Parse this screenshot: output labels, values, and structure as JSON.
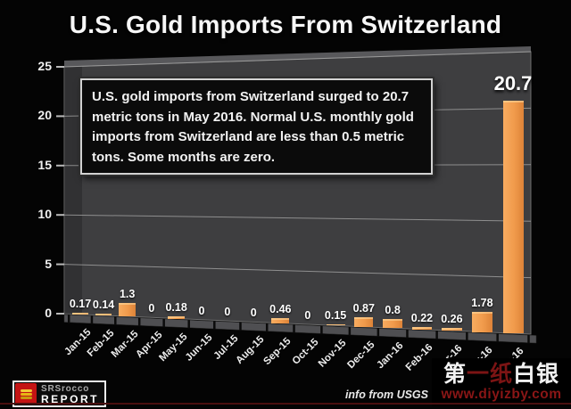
{
  "title": "U.S. Gold Imports From Switzerland",
  "annotation": {
    "text": "U.S. gold imports from Switzerland surged to 20.7 metric tons in May 2016.  Normal U.S. monthly gold imports from Switzerland are less than 0.5 metric tons.  Some months are zero."
  },
  "chart_data": {
    "type": "bar",
    "title": "U.S. Gold Imports From Switzerland",
    "categories": [
      "Jan-15",
      "Feb-15",
      "Mar-15",
      "Apr-15",
      "May-15",
      "Jun-15",
      "Jul-15",
      "Aug-15",
      "Sep-15",
      "Oct-15",
      "Nov-15",
      "Dec-15",
      "Jan-16",
      "Feb-16",
      "Mar-16",
      "Apr-16",
      "May-16"
    ],
    "values": [
      0.17,
      0.14,
      1.3,
      0,
      0.18,
      0,
      0,
      0,
      0.46,
      0,
      0.15,
      0.87,
      0.8,
      0.22,
      0.26,
      1.78,
      20.7
    ],
    "value_labels": [
      "0.17",
      "0.14",
      "1.3",
      "0",
      "0.18",
      "0",
      "0",
      "0",
      "0.46",
      "0",
      "0.15",
      "0.87",
      "0.8",
      "0.22",
      "0.26",
      "1.78",
      "20.7"
    ],
    "highlight_index": 16,
    "xlabel": "",
    "ylabel": "",
    "ylim": [
      0,
      25
    ],
    "yticks": [
      0,
      5,
      10,
      15,
      20,
      25
    ],
    "grid": true,
    "legend": false,
    "bar_color": "#F09A4B",
    "wall_color": "#3E3E40",
    "grid_color": "#a9a9a9"
  },
  "footer": {
    "logo": {
      "line1": "SRSrocco",
      "line2": "REPORT"
    },
    "source_note": "info from USGS",
    "watermark": {
      "line1": "第一纸白银",
      "line1_colors": [
        "#f2f2f2",
        "#7c1414",
        "#7c1414",
        "#f2f2f2",
        "#f2f2f2"
      ],
      "line2": "www.diyizby.com",
      "line2_color": "#8a1616"
    }
  }
}
